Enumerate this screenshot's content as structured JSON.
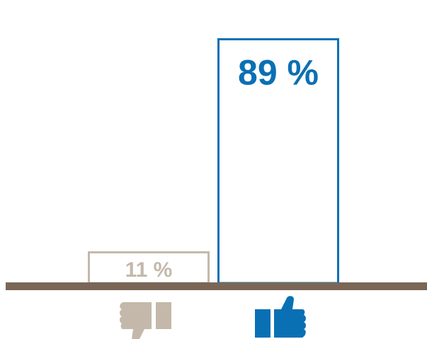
{
  "chart_data": {
    "type": "bar",
    "categories": [
      "dislike",
      "like"
    ],
    "values": [
      11,
      89
    ],
    "value_labels": [
      "11 %",
      "89 %"
    ],
    "ylim": [
      0,
      100
    ],
    "grid": false,
    "legend": "none",
    "title": "",
    "xlabel": "",
    "ylabel": ""
  },
  "icons": {
    "dislike": "thumbs-down-icon",
    "like": "thumbs-up-icon"
  },
  "colors": {
    "dislike": "#c4b8aa",
    "like": "#0a70b4",
    "baseline": "#7a6657",
    "background": "#ffffff"
  }
}
